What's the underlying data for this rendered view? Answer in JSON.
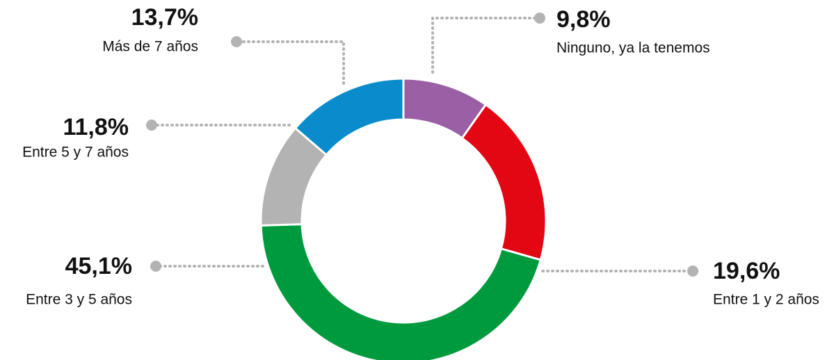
{
  "chart_data": {
    "type": "donut",
    "categories": [
      "Ninguno, ya la tenemos",
      "Entre 1 y 2 años",
      "Entre 3 y 5 años",
      "Entre 5 y 7 años",
      "Más de 7 años"
    ],
    "values": [
      9.8,
      19.6,
      45.1,
      11.8,
      13.7
    ],
    "value_labels": [
      "9,8%",
      "19,6%",
      "45,1%",
      "11,8%",
      "13,7%"
    ],
    "colors": [
      "#9b5fa5",
      "#e30613",
      "#009a3e",
      "#b3b3b3",
      "#0a8ccc"
    ]
  }
}
